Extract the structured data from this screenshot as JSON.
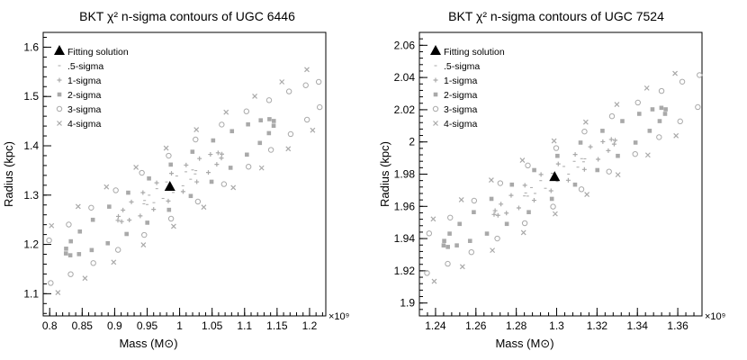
{
  "chart_data": [
    {
      "type": "scatter",
      "title": "BKT χ² n-sigma contours of UGC 6446",
      "xlabel": "Mass (M⊙)",
      "ylabel": "Radius (kpc)",
      "x_multiplier": "×10⁹",
      "xlim": [
        0.79,
        1.225
      ],
      "ylim": [
        1.055,
        1.63
      ],
      "xticks": [
        0.8,
        0.85,
        0.9,
        0.95,
        1.0,
        1.05,
        1.1,
        1.15,
        1.2
      ],
      "xtick_labels": [
        "0.8",
        "0.85",
        "0.9",
        "0.95",
        "1",
        "1.05",
        "1.1",
        "1.15",
        "1.2"
      ],
      "yticks": [
        1.1,
        1.2,
        1.3,
        1.4,
        1.5,
        1.6
      ],
      "ytick_labels": [
        "1.1",
        "1.2",
        "1.3",
        "1.4",
        "1.5",
        "1.6"
      ],
      "legend": [
        "Fitting solution",
        ".5-sigma",
        "1-sigma",
        "2-sigma",
        "3-sigma",
        "4-sigma"
      ],
      "legend_position": "top-left",
      "fit": [
        0.985,
        1.316
      ],
      "contours": {
        "angle_deg": 32.5,
        "major": [
          0.04,
          0.08,
          0.16,
          0.25,
          0.34
        ],
        "minor": [
          0.008,
          0.014,
          0.024,
          0.035,
          0.045
        ],
        "points": [
          16,
          22,
          30,
          38,
          46
        ]
      }
    },
    {
      "type": "scatter",
      "title": "BKT χ² n-sigma contours of UGC 7524",
      "xlabel": "Mass (M⊙)",
      "ylabel": "Radius (kpc)",
      "x_multiplier": "×10⁹",
      "xlim": [
        1.232,
        1.372
      ],
      "ylim": [
        1.892,
        2.068
      ],
      "xticks": [
        1.24,
        1.26,
        1.28,
        1.3,
        1.32,
        1.34,
        1.36
      ],
      "xtick_labels": [
        "1.24",
        "1.26",
        "1.28",
        "1.3",
        "1.32",
        "1.34",
        "1.36"
      ],
      "yticks": [
        1.9,
        1.92,
        1.94,
        1.96,
        1.98,
        2.0,
        2.02,
        2.04,
        2.06
      ],
      "ytick_labels": [
        "1.9",
        "1.92",
        "1.94",
        "1.96",
        "1.98",
        "2",
        "2.02",
        "2.04",
        "2.06"
      ],
      "legend": [
        "Fitting solution",
        ".5-sigma",
        "1-sigma",
        "2-sigma",
        "3-sigma",
        "4-sigma"
      ],
      "legend_position": "top-left",
      "fit": [
        1.299,
        1.978
      ],
      "contours": {
        "angle_deg": 31.5,
        "major": [
          0.015,
          0.03,
          0.055,
          0.085,
          0.115
        ],
        "minor": [
          0.002,
          0.004,
          0.007,
          0.01,
          0.013
        ],
        "points": [
          16,
          22,
          30,
          38,
          46
        ]
      }
    }
  ]
}
